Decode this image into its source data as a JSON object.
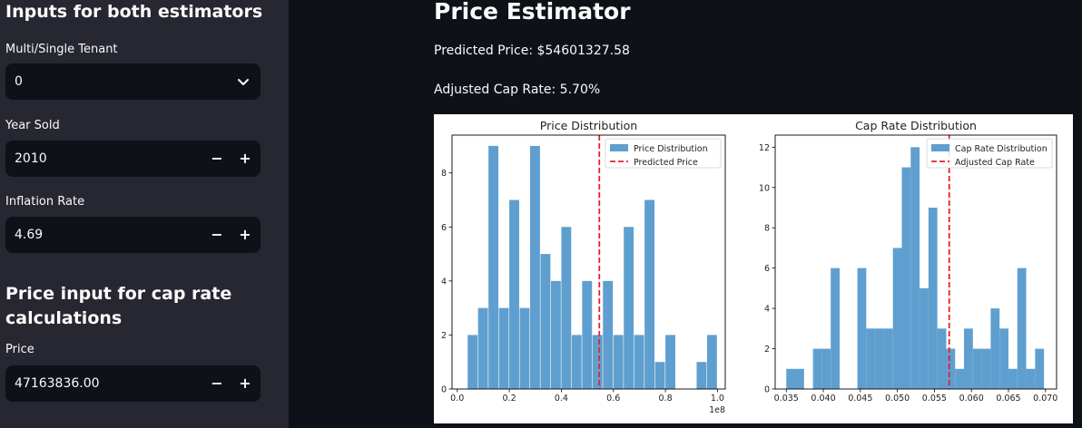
{
  "sidebar": {
    "section1_title": "Inputs for both estimators",
    "tenant": {
      "label": "Multi/Single Tenant",
      "value": "0"
    },
    "year": {
      "label": "Year Sold",
      "value": "2010"
    },
    "inflation": {
      "label": "Inflation Rate",
      "value": "4.69"
    },
    "section2_title": "Price input for cap rate calculations",
    "price": {
      "label": "Price",
      "value": "47163836.00"
    },
    "minus_label": "−",
    "plus_label": "+"
  },
  "main": {
    "title": "Price Estimator",
    "predicted_price": "Predicted Price: $54601327.58",
    "adjusted_cap_rate": "Adjusted Cap Rate: 5.70%"
  },
  "colors": {
    "bar": "#5f9fcf",
    "line": "#e8202a",
    "bg": "#0e1117",
    "sidebar": "#262730"
  },
  "chart_data": [
    {
      "type": "bar",
      "title": "Price Distribution",
      "x_edges": [
        0.04,
        0.08,
        0.12,
        0.16,
        0.2,
        0.24,
        0.28,
        0.32,
        0.36,
        0.4,
        0.44,
        0.48,
        0.52,
        0.56,
        0.6,
        0.64,
        0.68,
        0.72,
        0.76,
        0.8,
        0.84,
        0.88,
        0.92,
        0.96
      ],
      "bin_width": 0.038,
      "values": [
        2,
        3,
        9,
        3,
        7,
        3,
        9,
        5,
        4,
        6,
        2,
        4,
        2,
        4,
        2,
        6,
        2,
        7,
        1,
        2,
        0,
        0,
        1,
        2
      ],
      "xlim": [
        -0.02,
        1.03
      ],
      "ylim": [
        0,
        9.4
      ],
      "xticks": [
        0.0,
        0.2,
        0.4,
        0.6,
        0.8,
        1.0
      ],
      "xtick_labels": [
        "0.0",
        "0.2",
        "0.4",
        "0.6",
        "0.8",
        "1.0"
      ],
      "yticks": [
        0,
        2,
        4,
        6,
        8
      ],
      "ytick_labels": [
        "0",
        "2",
        "4",
        "6",
        "8"
      ],
      "x_offset_label": "1e8",
      "vline": 0.546,
      "legend": [
        "Price Distribution",
        "Predicted Price"
      ],
      "legend_position": "top-right"
    },
    {
      "type": "bar",
      "title": "Cap Rate Distribution",
      "x_edges": [
        0.035,
        0.0362,
        0.0374,
        0.0386,
        0.0398,
        0.041,
        0.0422,
        0.0434,
        0.0446,
        0.0458,
        0.047,
        0.0482,
        0.0494,
        0.0506,
        0.0518,
        0.053,
        0.0542,
        0.0554,
        0.0566,
        0.0578,
        0.059,
        0.0602,
        0.0614,
        0.0626,
        0.0638,
        0.065,
        0.0662,
        0.0674,
        0.0686,
        0.0698
      ],
      "bin_width": 0.0012,
      "values": [
        1,
        1,
        0,
        2,
        2,
        6,
        0,
        0,
        6,
        3,
        3,
        3,
        7,
        11,
        12,
        5,
        9,
        3,
        2,
        1,
        3,
        2,
        2,
        4,
        3,
        1,
        6,
        1,
        2,
        0
      ],
      "xlim": [
        0.0335,
        0.0715
      ],
      "ylim": [
        0,
        12.6
      ],
      "xticks": [
        0.035,
        0.04,
        0.045,
        0.05,
        0.055,
        0.06,
        0.065,
        0.07
      ],
      "xtick_labels": [
        "0.035",
        "0.040",
        "0.045",
        "0.050",
        "0.055",
        "0.060",
        "0.065",
        "0.070"
      ],
      "yticks": [
        0,
        2,
        4,
        6,
        8,
        10,
        12
      ],
      "ytick_labels": [
        "0",
        "2",
        "4",
        "6",
        "8",
        "10",
        "12"
      ],
      "vline": 0.057,
      "legend": [
        "Cap Rate Distribution",
        "Adjusted Cap Rate"
      ],
      "legend_position": "top-right"
    }
  ]
}
